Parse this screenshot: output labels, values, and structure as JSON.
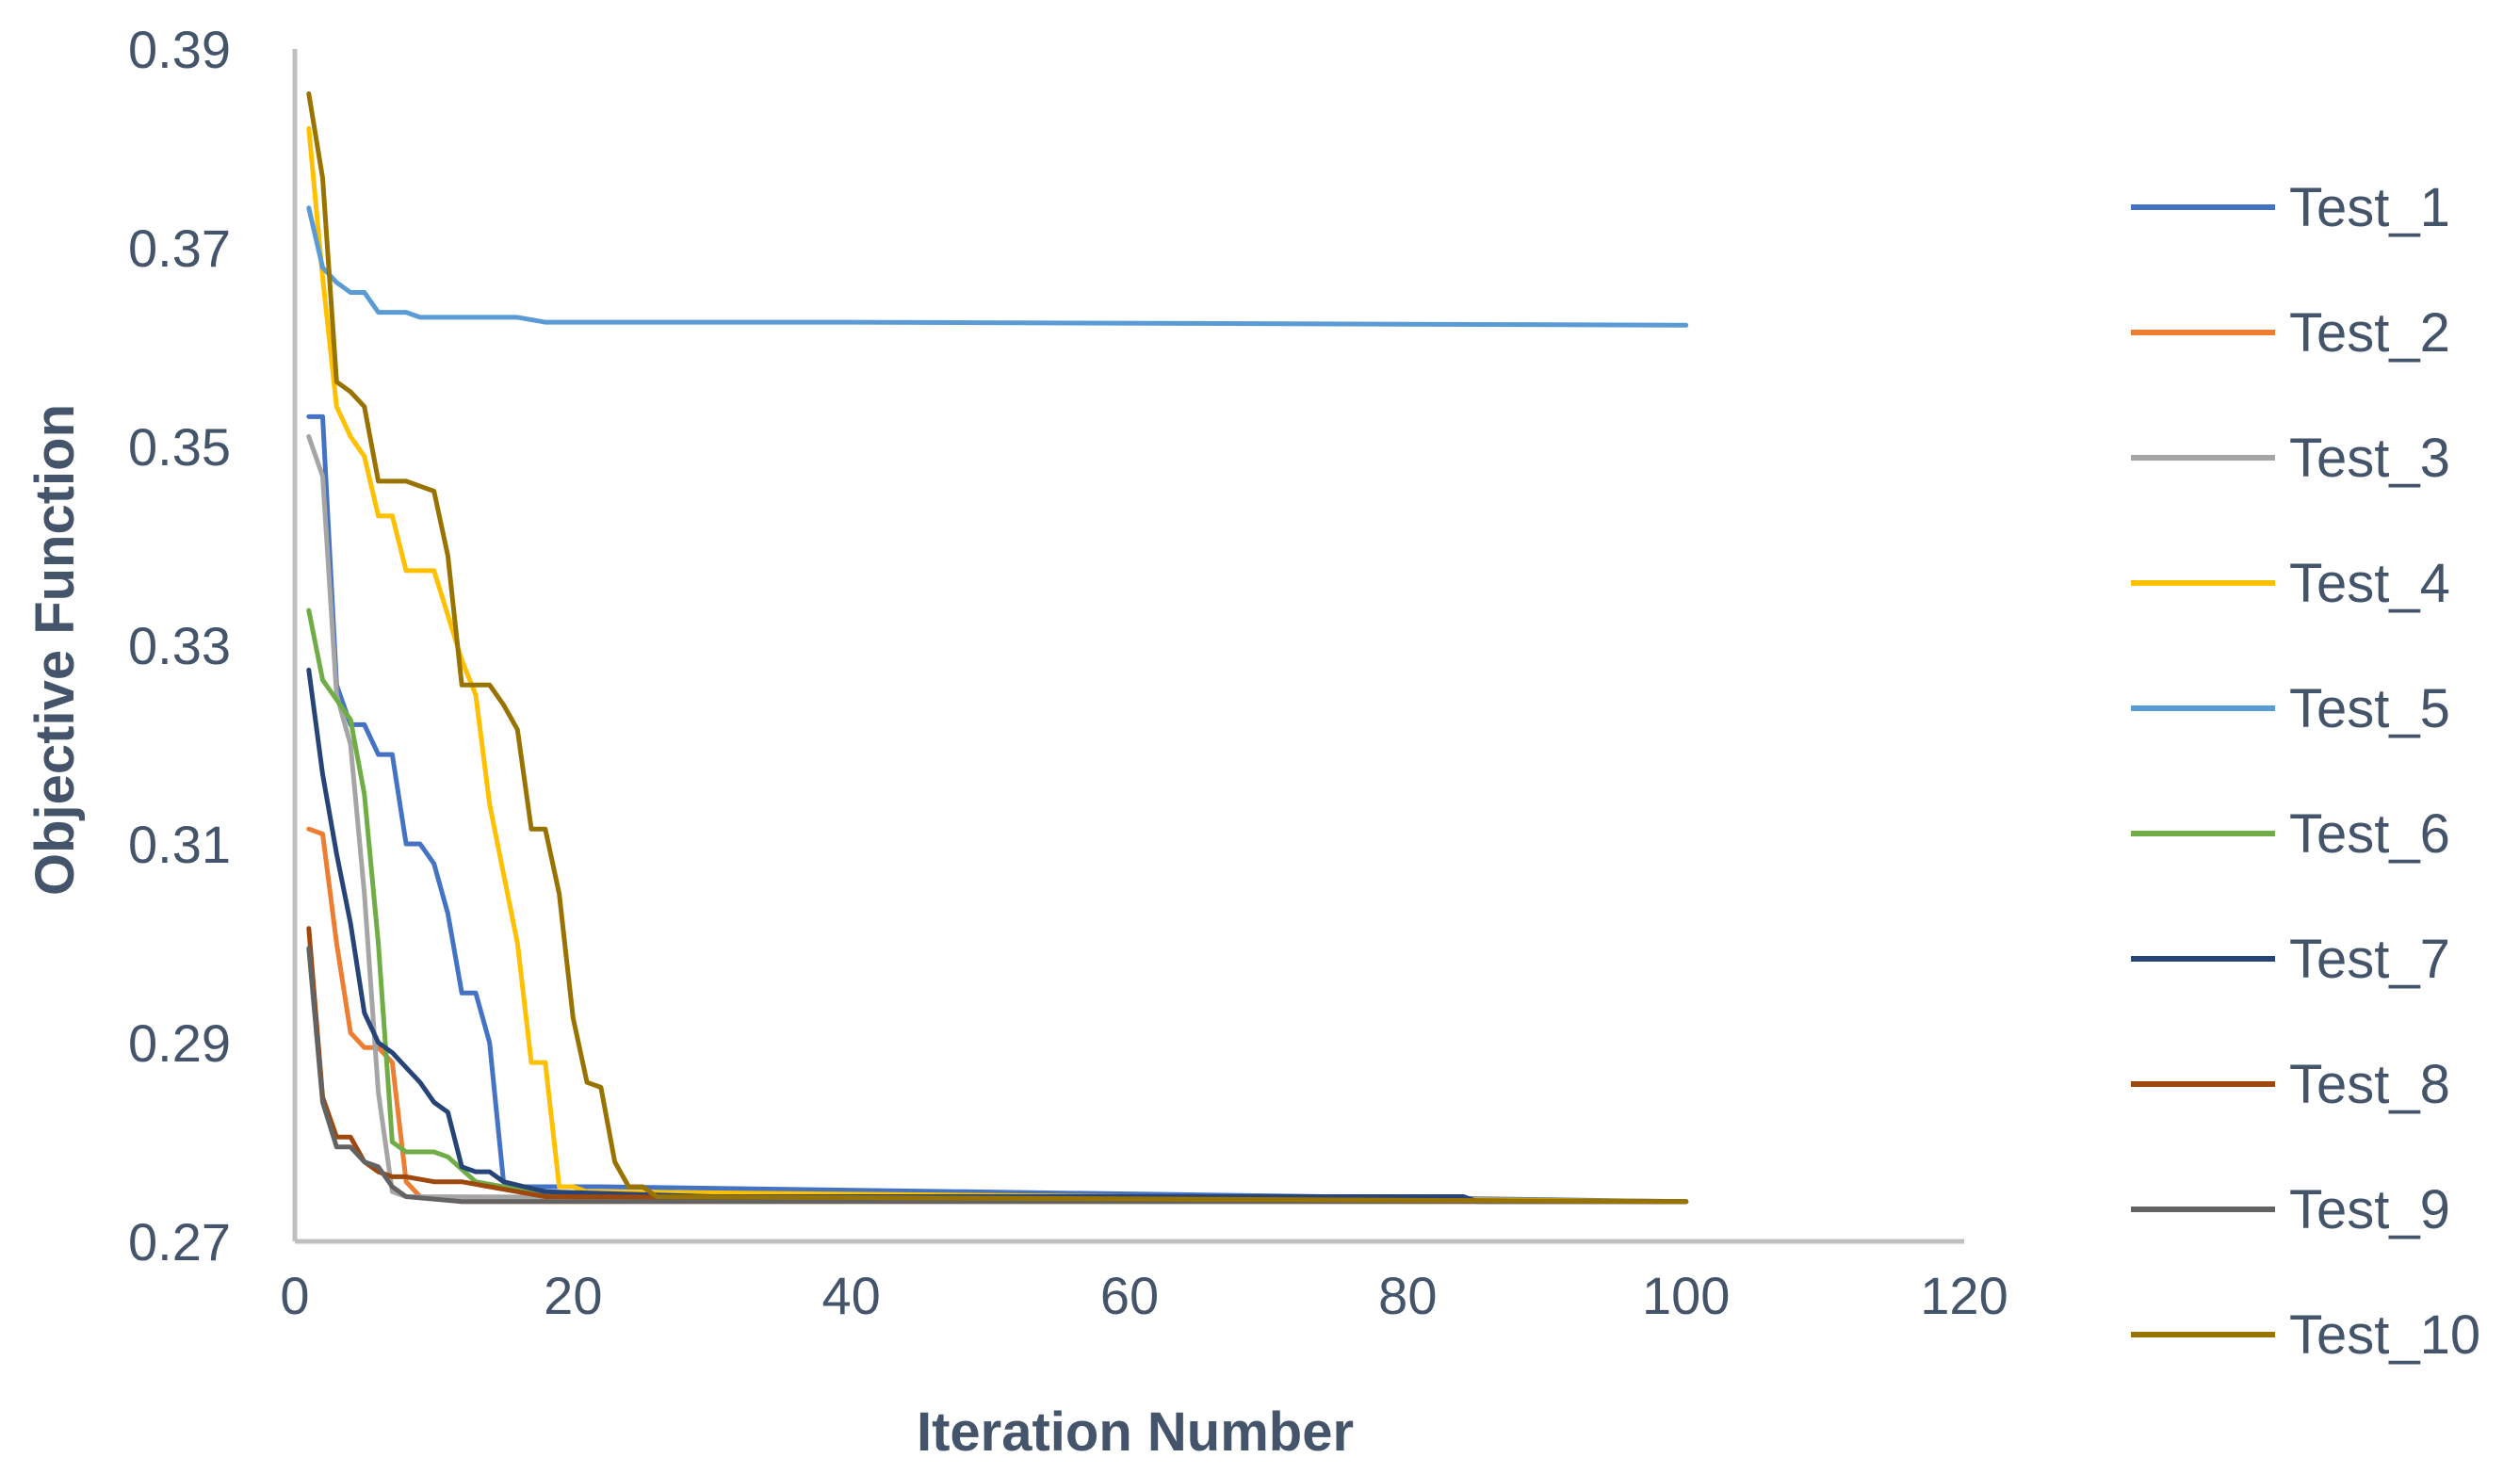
{
  "chart_data": {
    "type": "line",
    "title": "",
    "xlabel": "Iteration Number",
    "ylabel": "Objective Function",
    "xlim": [
      0,
      120
    ],
    "ylim": [
      0.27,
      0.39
    ],
    "xticks": [
      "0",
      "20",
      "40",
      "60",
      "80",
      "100",
      "120"
    ],
    "yticks": [
      "0.27",
      "0.29",
      "0.31",
      "0.33",
      "0.35",
      "0.37",
      "0.39"
    ],
    "grid": false,
    "legend_position": "right",
    "series": [
      {
        "name": "Test_1",
        "color": "#4472c4",
        "points": [
          [
            1,
            0.353
          ],
          [
            2,
            0.353
          ],
          [
            3,
            0.326
          ],
          [
            4,
            0.322
          ],
          [
            5,
            0.322
          ],
          [
            6,
            0.319
          ],
          [
            7,
            0.319
          ],
          [
            8,
            0.31
          ],
          [
            9,
            0.31
          ],
          [
            10,
            0.308
          ],
          [
            11,
            0.303
          ],
          [
            12,
            0.295
          ],
          [
            13,
            0.295
          ],
          [
            14,
            0.29
          ],
          [
            15,
            0.276
          ],
          [
            16,
            0.2755
          ],
          [
            20,
            0.2755
          ],
          [
            22,
            0.2755
          ],
          [
            100,
            0.274
          ]
        ]
      },
      {
        "name": "Test_2",
        "color": "#ed7d31",
        "points": [
          [
            1,
            0.3115
          ],
          [
            2,
            0.311
          ],
          [
            3,
            0.3
          ],
          [
            4,
            0.291
          ],
          [
            5,
            0.2895
          ],
          [
            6,
            0.2895
          ],
          [
            7,
            0.288
          ],
          [
            8,
            0.276
          ],
          [
            9,
            0.2745
          ],
          [
            12,
            0.274
          ],
          [
            100,
            0.274
          ]
        ]
      },
      {
        "name": "Test_3",
        "color": "#a5a5a5",
        "points": [
          [
            1,
            0.351
          ],
          [
            2,
            0.347
          ],
          [
            3,
            0.325
          ],
          [
            4,
            0.32
          ],
          [
            5,
            0.305
          ],
          [
            6,
            0.285
          ],
          [
            7,
            0.275
          ],
          [
            8,
            0.2745
          ],
          [
            100,
            0.274
          ]
        ]
      },
      {
        "name": "Test_4",
        "color": "#ffc000",
        "points": [
          [
            1,
            0.382
          ],
          [
            2,
            0.367
          ],
          [
            3,
            0.354
          ],
          [
            4,
            0.351
          ],
          [
            5,
            0.349
          ],
          [
            6,
            0.343
          ],
          [
            7,
            0.343
          ],
          [
            8,
            0.3375
          ],
          [
            9,
            0.3375
          ],
          [
            10,
            0.3375
          ],
          [
            12,
            0.3285
          ],
          [
            13,
            0.325
          ],
          [
            14,
            0.314
          ],
          [
            15,
            0.307
          ],
          [
            16,
            0.3
          ],
          [
            17,
            0.288
          ],
          [
            18,
            0.288
          ],
          [
            19,
            0.2755
          ],
          [
            20,
            0.2755
          ],
          [
            21,
            0.275
          ],
          [
            100,
            0.274
          ]
        ]
      },
      {
        "name": "Test_5",
        "color": "#5b9bd5",
        "points": [
          [
            1,
            0.374
          ],
          [
            2,
            0.368
          ],
          [
            3,
            0.3665
          ],
          [
            4,
            0.3655
          ],
          [
            5,
            0.3655
          ],
          [
            6,
            0.3635
          ],
          [
            7,
            0.3635
          ],
          [
            8,
            0.3635
          ],
          [
            9,
            0.363
          ],
          [
            12,
            0.363
          ],
          [
            16,
            0.363
          ],
          [
            18,
            0.3625
          ],
          [
            40,
            0.3625
          ],
          [
            100,
            0.3622
          ]
        ]
      },
      {
        "name": "Test_6",
        "color": "#70ad47",
        "points": [
          [
            1,
            0.3335
          ],
          [
            2,
            0.3265
          ],
          [
            3,
            0.3245
          ],
          [
            4,
            0.3225
          ],
          [
            5,
            0.315
          ],
          [
            6,
            0.3
          ],
          [
            7,
            0.28
          ],
          [
            8,
            0.279
          ],
          [
            9,
            0.279
          ],
          [
            10,
            0.279
          ],
          [
            11,
            0.2785
          ],
          [
            13,
            0.276
          ],
          [
            15,
            0.2755
          ],
          [
            17,
            0.275
          ],
          [
            19,
            0.2745
          ],
          [
            100,
            0.274
          ]
        ]
      },
      {
        "name": "Test_7",
        "color": "#264478",
        "points": [
          [
            1,
            0.3275
          ],
          [
            2,
            0.317
          ],
          [
            3,
            0.309
          ],
          [
            4,
            0.302
          ],
          [
            5,
            0.293
          ],
          [
            6,
            0.29
          ],
          [
            7,
            0.289
          ],
          [
            8,
            0.2875
          ],
          [
            9,
            0.286
          ],
          [
            10,
            0.284
          ],
          [
            11,
            0.283
          ],
          [
            12,
            0.2775
          ],
          [
            13,
            0.277
          ],
          [
            14,
            0.277
          ],
          [
            15,
            0.276
          ],
          [
            18,
            0.275
          ],
          [
            30,
            0.2745
          ],
          [
            84,
            0.2745
          ],
          [
            85,
            0.274
          ],
          [
            100,
            0.274
          ]
        ]
      },
      {
        "name": "Test_8",
        "color": "#9e480e",
        "points": [
          [
            1,
            0.3015
          ],
          [
            2,
            0.2845
          ],
          [
            3,
            0.2805
          ],
          [
            4,
            0.2805
          ],
          [
            5,
            0.278
          ],
          [
            6,
            0.277
          ],
          [
            7,
            0.2765
          ],
          [
            8,
            0.2765
          ],
          [
            10,
            0.276
          ],
          [
            12,
            0.276
          ],
          [
            14,
            0.2755
          ],
          [
            18,
            0.2745
          ],
          [
            100,
            0.274
          ]
        ]
      },
      {
        "name": "Test_9",
        "color": "#636363",
        "points": [
          [
            1,
            0.2995
          ],
          [
            2,
            0.284
          ],
          [
            3,
            0.2795
          ],
          [
            4,
            0.2795
          ],
          [
            5,
            0.278
          ],
          [
            6,
            0.2775
          ],
          [
            7,
            0.2755
          ],
          [
            8,
            0.2745
          ],
          [
            12,
            0.274
          ],
          [
            100,
            0.274
          ]
        ]
      },
      {
        "name": "Test_10",
        "color": "#997300",
        "points": [
          [
            1,
            0.3855
          ],
          [
            2,
            0.377
          ],
          [
            3,
            0.3565
          ],
          [
            4,
            0.3555
          ],
          [
            5,
            0.354
          ],
          [
            6,
            0.3465
          ],
          [
            7,
            0.3465
          ],
          [
            8,
            0.3465
          ],
          [
            9,
            0.346
          ],
          [
            10,
            0.3455
          ],
          [
            11,
            0.339
          ],
          [
            12,
            0.326
          ],
          [
            13,
            0.326
          ],
          [
            14,
            0.326
          ],
          [
            15,
            0.324
          ],
          [
            16,
            0.3215
          ],
          [
            17,
            0.3115
          ],
          [
            18,
            0.3115
          ],
          [
            19,
            0.305
          ],
          [
            20,
            0.2925
          ],
          [
            21,
            0.286
          ],
          [
            22,
            0.2855
          ],
          [
            23,
            0.278
          ],
          [
            24,
            0.2755
          ],
          [
            25,
            0.2755
          ],
          [
            26,
            0.2745
          ],
          [
            100,
            0.274
          ]
        ]
      }
    ]
  }
}
